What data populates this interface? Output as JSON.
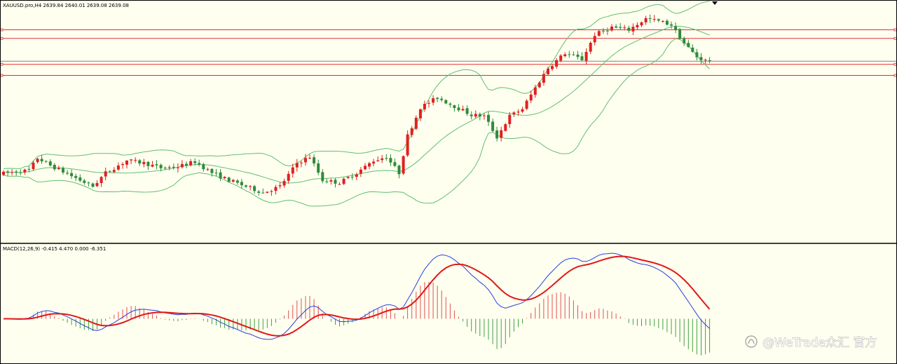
{
  "window": {
    "main_title": "XAUUSD.pro,H4  2639.84 2640.01 2639.08 2639.08",
    "macd_title": "MACD(12,26,9) -0.415 4.470 0.000 -6.351"
  },
  "watermark": {
    "text": "@WeTrade众汇 官方",
    "icon": "wechat-channels-icon"
  },
  "colors": {
    "background": "#fffff0",
    "bull": "#e02020",
    "bear": "#2e8b3a",
    "bands": "#5fbf6f",
    "hlines": "#e03030",
    "current_price_line": "#808080",
    "macd_line": "#2a3ee0",
    "signal_line": "#e01818",
    "hist_pos": "#e05050",
    "hist_neg": "#40a040"
  },
  "chart_data": [
    {
      "type": "candlestick",
      "symbol": "XAUUSD.pro",
      "timeframe": "H4",
      "last_quote": {
        "open": 2639.84,
        "high": 2640.01,
        "low": 2639.08,
        "close": 2639.08
      },
      "price_range": [
        2540,
        2735
      ],
      "anchors": [
        [
          0,
          2595
        ],
        [
          4,
          2597
        ],
        [
          7,
          2598
        ],
        [
          9,
          2608
        ],
        [
          12,
          2602
        ],
        [
          15,
          2597
        ],
        [
          19,
          2590
        ],
        [
          22,
          2585
        ],
        [
          25,
          2596
        ],
        [
          30,
          2606
        ],
        [
          34,
          2604
        ],
        [
          38,
          2600
        ],
        [
          42,
          2601
        ],
        [
          46,
          2605
        ],
        [
          50,
          2596
        ],
        [
          54,
          2590
        ],
        [
          58,
          2585
        ],
        [
          62,
          2580
        ],
        [
          66,
          2585
        ],
        [
          70,
          2604
        ],
        [
          73,
          2609
        ],
        [
          76,
          2590
        ],
        [
          80,
          2588
        ],
        [
          84,
          2596
        ],
        [
          88,
          2606
        ],
        [
          91,
          2609
        ],
        [
          94,
          2596
        ],
        [
          96,
          2626
        ],
        [
          99,
          2649
        ],
        [
          103,
          2657
        ],
        [
          107,
          2650
        ],
        [
          111,
          2643
        ],
        [
          114,
          2642
        ],
        [
          117,
          2625
        ],
        [
          120,
          2642
        ],
        [
          123,
          2648
        ],
        [
          126,
          2665
        ],
        [
          129,
          2681
        ],
        [
          133,
          2693
        ],
        [
          137,
          2688
        ],
        [
          140,
          2708
        ],
        [
          144,
          2714
        ],
        [
          148,
          2712
        ],
        [
          152,
          2721
        ],
        [
          155,
          2719
        ],
        [
          158,
          2716
        ],
        [
          161,
          2701
        ],
        [
          164,
          2690
        ],
        [
          166,
          2687
        ]
      ],
      "bollinger_bands": {
        "period": 20,
        "deviations": 2
      },
      "horizontal_levels": [
        2712,
        2705,
        2684,
        2675
      ]
    },
    {
      "type": "macd",
      "params": [
        12,
        26,
        9
      ],
      "values": {
        "main": -0.415,
        "signal": 4.47,
        "extra1": 0.0,
        "extra2": -6.351
      },
      "series": [
        "macd",
        "signal",
        "histogram"
      ]
    }
  ]
}
